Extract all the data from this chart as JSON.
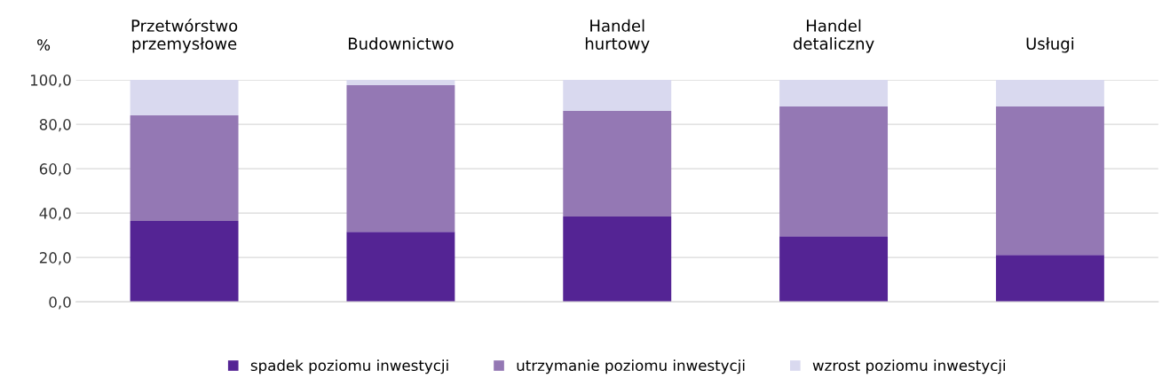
{
  "chart_data": {
    "type": "bar",
    "stacked": true,
    "ylabel": "%",
    "categories": [
      "Przetwórstwo\nprzemysłowe",
      "Budownictwo",
      "Handel\nhurtowy",
      "Handel\ndetaliczny",
      "Usługi"
    ],
    "series": [
      {
        "name": "spadek poziomu inwestycji",
        "color": "#542494",
        "values": [
          36.4,
          31.6,
          38.4,
          29.6,
          21.2
        ]
      },
      {
        "name": "utrzymanie poziomu inwestycji",
        "color": "#9478b4",
        "values": [
          47.6,
          66.0,
          47.6,
          58.4,
          66.8
        ]
      },
      {
        "name": "wzrost poziomu inwestycji",
        "color": "#d9d9ef",
        "values": [
          16.0,
          2.4,
          14.0,
          12.0,
          12.0
        ]
      }
    ],
    "ylim": [
      0,
      100
    ],
    "yticks": [
      {
        "value": 0,
        "label": "0,0"
      },
      {
        "value": 20,
        "label": "20,0"
      },
      {
        "value": 40,
        "label": "40,0"
      },
      {
        "value": 60,
        "label": "60,0"
      },
      {
        "value": 80,
        "label": "80,0"
      },
      {
        "value": 100,
        "label": "100,0"
      }
    ],
    "grid": "y",
    "legend": "bottom"
  }
}
